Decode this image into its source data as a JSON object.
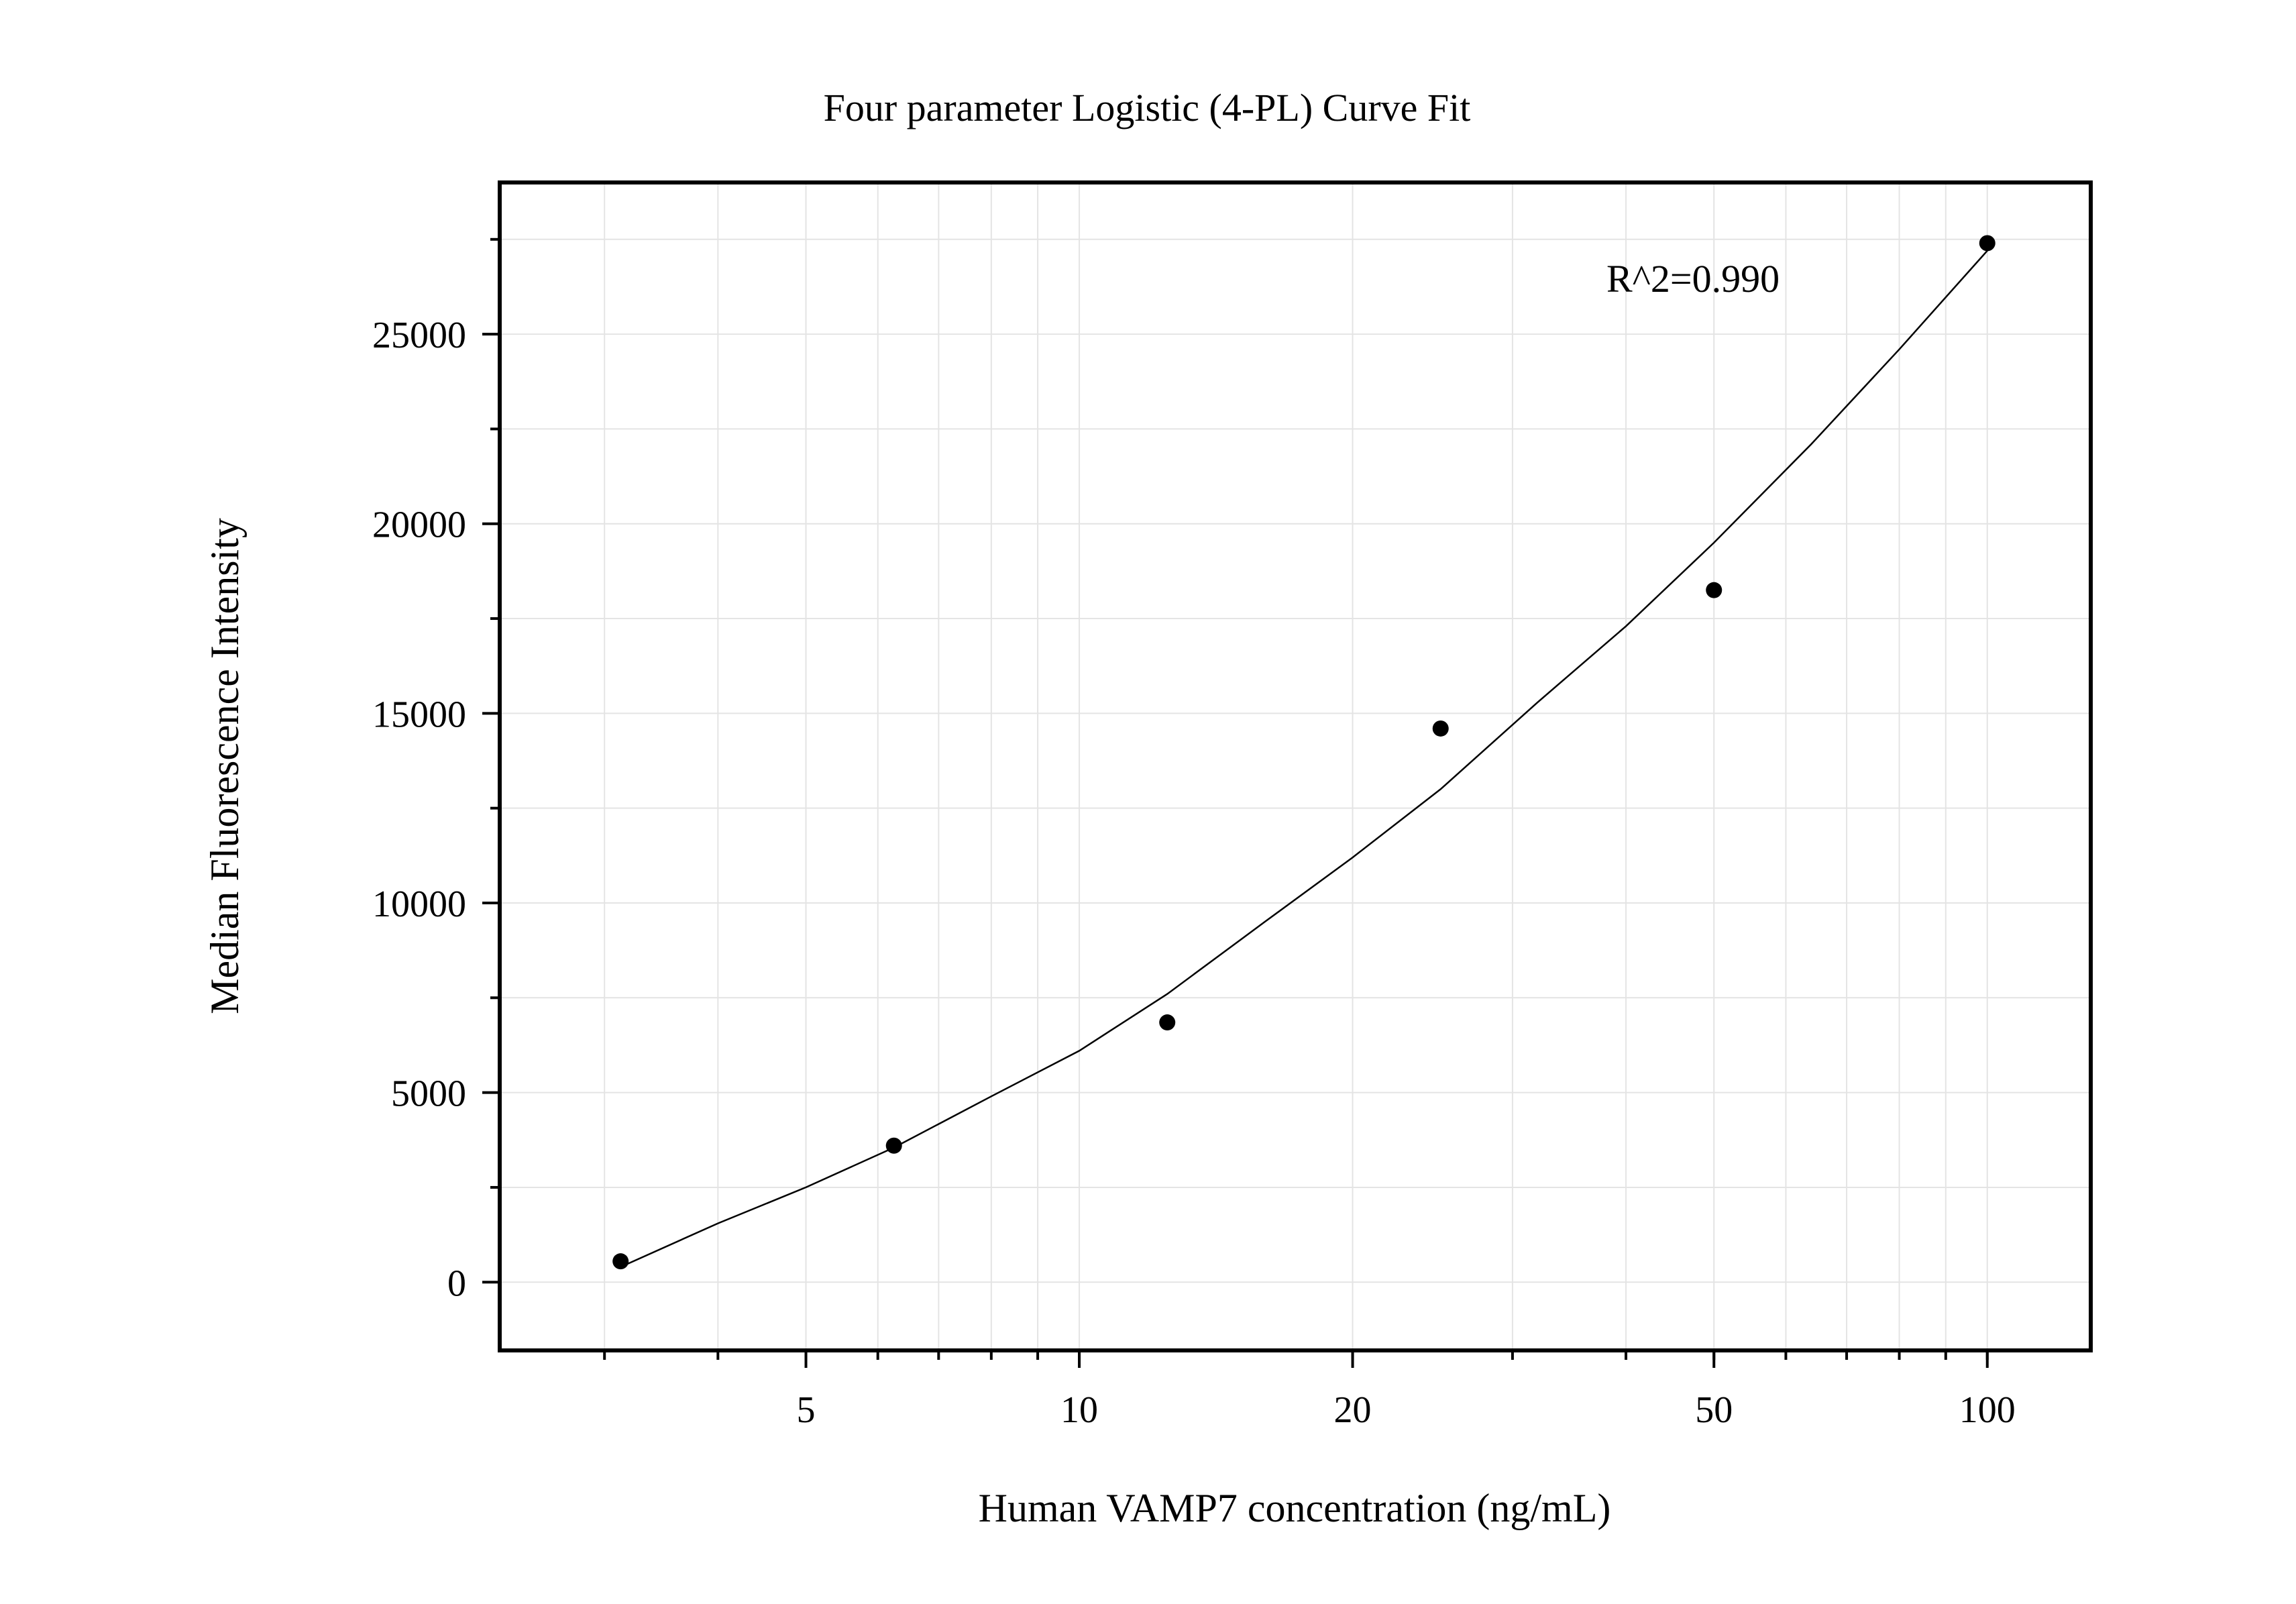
{
  "chart_data": {
    "type": "scatter",
    "title": "Four parameter Logistic (4-PL) Curve Fit",
    "xlabel": "Human VAMP7 concentration (ng/mL)",
    "ylabel": "Median Fluorescence Intensity",
    "x_scale": "log",
    "xlim": [
      2.3,
      130
    ],
    "ylim": [
      -1800,
      29000
    ],
    "x_ticks": [
      5,
      10,
      20,
      50,
      100
    ],
    "x_tick_labels": [
      "5",
      "10",
      "20",
      "50",
      "100"
    ],
    "y_ticks": [
      0,
      5000,
      10000,
      15000,
      20000,
      25000
    ],
    "y_tick_labels": [
      "0",
      "5000",
      "10000",
      "15000",
      "20000",
      "25000"
    ],
    "grid": true,
    "annotation": "R^2=0.990",
    "series": [
      {
        "points": [
          {
            "x": 3.125,
            "y": 550
          },
          {
            "x": 6.25,
            "y": 3600
          },
          {
            "x": 12.5,
            "y": 6850
          },
          {
            "x": 25,
            "y": 14600
          },
          {
            "x": 50,
            "y": 18250
          },
          {
            "x": 100,
            "y": 27400
          }
        ]
      }
    ],
    "fit_curve": {
      "x": [
        3.125,
        4,
        5,
        6.25,
        8,
        10,
        12.5,
        16,
        20,
        25,
        32,
        40,
        50,
        64,
        80,
        100
      ],
      "y": [
        400,
        1550,
        2500,
        3550,
        4900,
        6100,
        7600,
        9500,
        11200,
        13000,
        15300,
        17300,
        19500,
        22100,
        24600,
        27200
      ]
    }
  }
}
